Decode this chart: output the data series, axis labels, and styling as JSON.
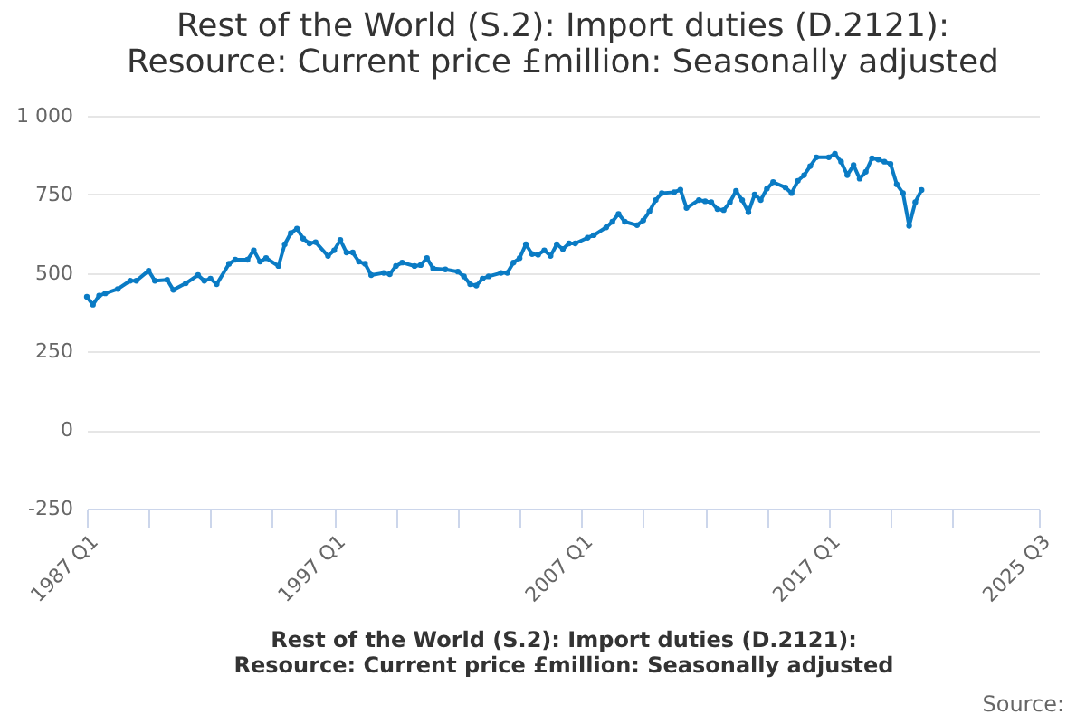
{
  "chart_data": {
    "type": "line",
    "title": "Rest of the World (S.2): Import duties (D.2121): Resource: Current price £million: Seasonally adjusted",
    "xlabel": "Rest of the World (S.2): Import duties (D.2121): Resource: Current price £million: Seasonally adjusted",
    "annotations": [
      "Source:"
    ],
    "x": [
      "1987-01",
      "1987-04",
      "1987-07",
      "1987-10",
      "1988-04",
      "1988-10",
      "1989-01",
      "1989-07",
      "1989-10",
      "1990-04",
      "1990-07",
      "1991-01",
      "1991-07",
      "1991-10",
      "1992-01",
      "1992-04",
      "1992-10",
      "1993-01",
      "1993-07",
      "1993-10",
      "1994-01",
      "1994-04",
      "1994-10",
      "1995-01",
      "1995-04",
      "1995-07",
      "1995-10",
      "1996-01",
      "1996-04",
      "1996-10",
      "1997-01",
      "1997-04",
      "1997-07",
      "1997-10",
      "1998-01",
      "1998-04",
      "1998-07",
      "1999-01",
      "1999-04",
      "1999-07",
      "1999-10",
      "2000-04",
      "2000-07",
      "2000-10",
      "2001-01",
      "2001-07",
      "2002-01",
      "2002-04",
      "2002-07",
      "2002-10",
      "2003-01",
      "2003-04",
      "2003-10",
      "2004-01",
      "2004-04",
      "2004-07",
      "2004-10",
      "2005-01",
      "2005-04",
      "2005-07",
      "2005-10",
      "2006-01",
      "2006-04",
      "2006-07",
      "2006-10",
      "2007-04",
      "2007-07",
      "2008-01",
      "2008-04",
      "2008-07",
      "2008-10",
      "2009-04",
      "2009-07",
      "2009-10",
      "2010-01",
      "2010-04",
      "2010-10",
      "2011-01",
      "2011-04",
      "2011-10",
      "2012-01",
      "2012-04",
      "2012-07",
      "2012-10",
      "2013-01",
      "2013-04",
      "2013-07",
      "2013-10",
      "2014-01",
      "2014-04",
      "2014-07",
      "2014-10",
      "2015-04",
      "2015-07",
      "2015-10",
      "2016-01",
      "2016-04",
      "2016-07",
      "2017-01",
      "2017-04",
      "2017-07",
      "2017-10",
      "2018-01",
      "2018-04",
      "2018-07",
      "2018-10",
      "2019-01",
      "2019-04",
      "2019-07",
      "2019-10",
      "2020-01",
      "2020-04",
      "2020-07",
      "2020-10"
    ],
    "series": [
      {
        "color": "#0a7bc4",
        "values": [
          424,
          399,
          428,
          435,
          449,
          475,
          475,
          507,
          475,
          478,
          446,
          467,
          493,
          475,
          482,
          464,
          529,
          542,
          542,
          572,
          536,
          547,
          522,
          591,
          627,
          641,
          609,
          594,
          598,
          554,
          572,
          605,
          565,
          565,
          536,
          529,
          493,
          500,
          496,
          522,
          533,
          522,
          525,
          547,
          514,
          511,
          504,
          489,
          464,
          460,
          482,
          489,
          500,
          500,
          533,
          547,
          591,
          560,
          558,
          572,
          554,
          591,
          576,
          594,
          594,
          612,
          620,
          645,
          663,
          688,
          663,
          652,
          667,
          696,
          732,
          754,
          757,
          765,
          707,
          732,
          728,
          725,
          703,
          700,
          725,
          761,
          732,
          693,
          750,
          732,
          768,
          789,
          772,
          754,
          793,
          811,
          840,
          868,
          868,
          879,
          854,
          811,
          843,
          800,
          822,
          865,
          861,
          854,
          847,
          782,
          754,
          650,
          725,
          764
        ]
      }
    ],
    "xlim": [
      "1987-01",
      "2025-07"
    ],
    "xticks": [
      {
        "value": "1987-01",
        "label": "1987 Q1"
      },
      {
        "value": "1989-07",
        "label": null
      },
      {
        "value": "1992-01",
        "label": null
      },
      {
        "value": "1994-07",
        "label": null
      },
      {
        "value": "1997-01",
        "label": "1997 Q1"
      },
      {
        "value": "1999-07",
        "label": null
      },
      {
        "value": "2002-01",
        "label": null
      },
      {
        "value": "2004-07",
        "label": null
      },
      {
        "value": "2007-01",
        "label": "2007 Q1"
      },
      {
        "value": "2009-07",
        "label": null
      },
      {
        "value": "2012-01",
        "label": null
      },
      {
        "value": "2014-07",
        "label": null
      },
      {
        "value": "2017-01",
        "label": "2017 Q1"
      },
      {
        "value": "2019-07",
        "label": null
      },
      {
        "value": "2022-01",
        "label": null
      },
      {
        "value": "2025-07",
        "label": "2025 Q3"
      }
    ],
    "ylim": [
      -250,
      1000
    ],
    "yticks": [
      -250,
      0,
      250,
      500,
      750,
      {
        "value": 1000,
        "label": "1 000"
      }
    ],
    "grid": "y",
    "marker": "circle",
    "line_style": "solid"
  }
}
